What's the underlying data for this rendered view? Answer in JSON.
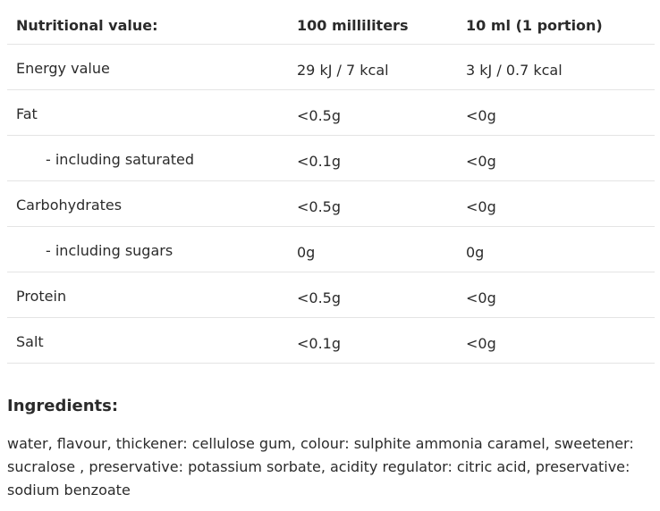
{
  "table": {
    "headers": [
      "Nutritional value:",
      "100 milliliters",
      "10 ml (1 portion)"
    ],
    "rows": [
      {
        "name": "Energy value",
        "per100": "29 kJ / 7 kcal",
        "perPortion": "3 kJ / 0.7 kcal"
      },
      {
        "name": "Fat",
        "per100": "<0.5g",
        "perPortion": "<0g"
      },
      {
        "name": "- including saturated",
        "per100": "<0.1g",
        "perPortion": "<0g"
      },
      {
        "name": "Carbohydrates",
        "per100": "<0.5g",
        "perPortion": "<0g"
      },
      {
        "name": "- including sugars",
        "per100": "0g",
        "perPortion": "0g"
      },
      {
        "name": "Protein",
        "per100": "<0.5g",
        "perPortion": "<0g"
      },
      {
        "name": "Salt",
        "per100": "<0.1g",
        "perPortion": "<0g"
      }
    ]
  },
  "ingredients": {
    "title": "Ingredients:",
    "text": "water, flavour, thickener: cellulose gum, colour: sulphite ammonia caramel, sweetener: sucralose , preservative: potassium sorbate, acidity regulator: citric acid, preservative: sodium benzoate"
  }
}
